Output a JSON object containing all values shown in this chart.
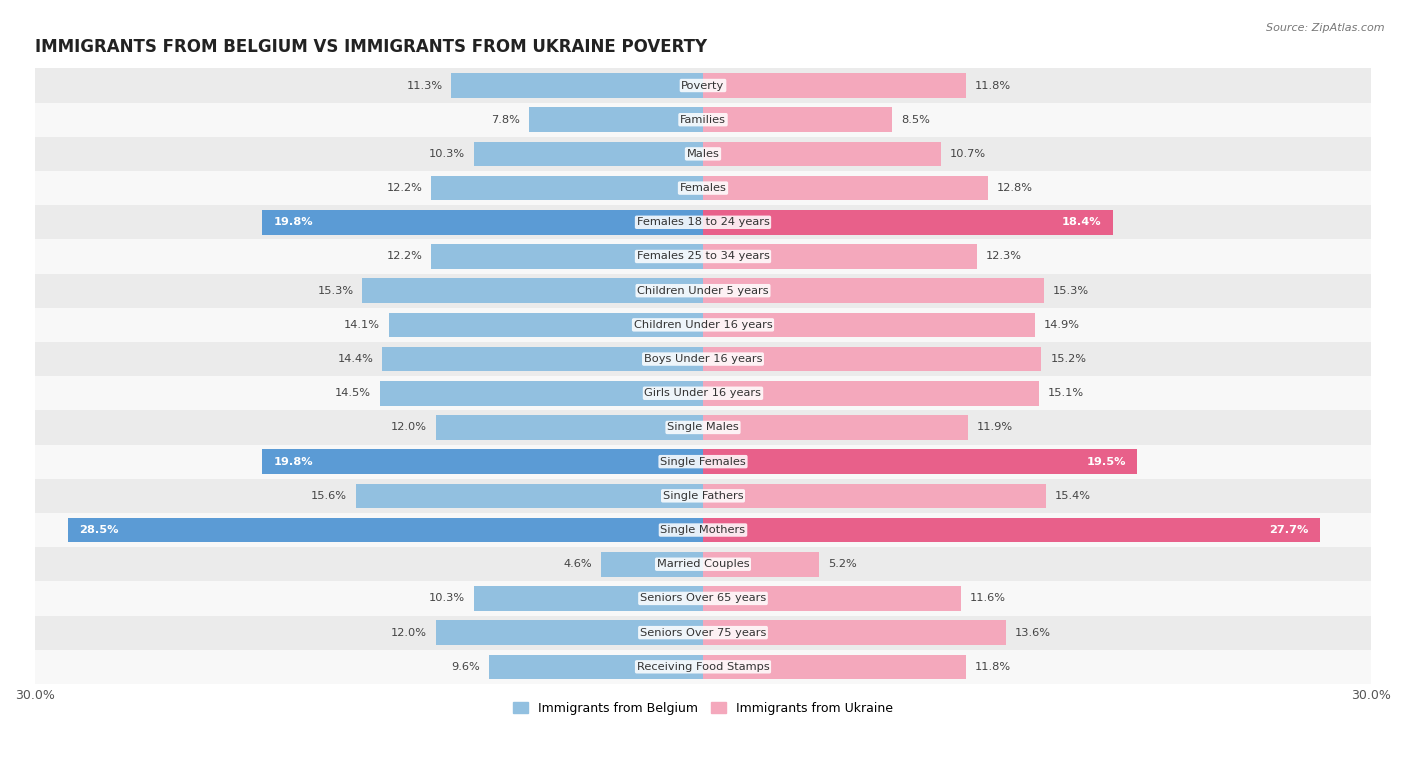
{
  "title": "IMMIGRANTS FROM BELGIUM VS IMMIGRANTS FROM UKRAINE POVERTY",
  "source": "Source: ZipAtlas.com",
  "categories": [
    "Poverty",
    "Families",
    "Males",
    "Females",
    "Females 18 to 24 years",
    "Females 25 to 34 years",
    "Children Under 5 years",
    "Children Under 16 years",
    "Boys Under 16 years",
    "Girls Under 16 years",
    "Single Males",
    "Single Females",
    "Single Fathers",
    "Single Mothers",
    "Married Couples",
    "Seniors Over 65 years",
    "Seniors Over 75 years",
    "Receiving Food Stamps"
  ],
  "belgium_values": [
    11.3,
    7.8,
    10.3,
    12.2,
    19.8,
    12.2,
    15.3,
    14.1,
    14.4,
    14.5,
    12.0,
    19.8,
    15.6,
    28.5,
    4.6,
    10.3,
    12.0,
    9.6
  ],
  "ukraine_values": [
    11.8,
    8.5,
    10.7,
    12.8,
    18.4,
    12.3,
    15.3,
    14.9,
    15.2,
    15.1,
    11.9,
    19.5,
    15.4,
    27.7,
    5.2,
    11.6,
    13.6,
    11.8
  ],
  "belgium_color": "#92c0e0",
  "ukraine_color": "#f4a8bc",
  "belgium_highlight_color": "#5b9bd5",
  "ukraine_highlight_color": "#e8608a",
  "highlight_rows": [
    4,
    11,
    13
  ],
  "axis_max": 30.0,
  "legend_belgium": "Immigrants from Belgium",
  "legend_ukraine": "Immigrants from Ukraine",
  "bg_color_odd": "#ebebeb",
  "bg_color_even": "#f8f8f8",
  "label_fontsize": 8.2,
  "cat_fontsize": 8.2,
  "bar_height": 0.72
}
